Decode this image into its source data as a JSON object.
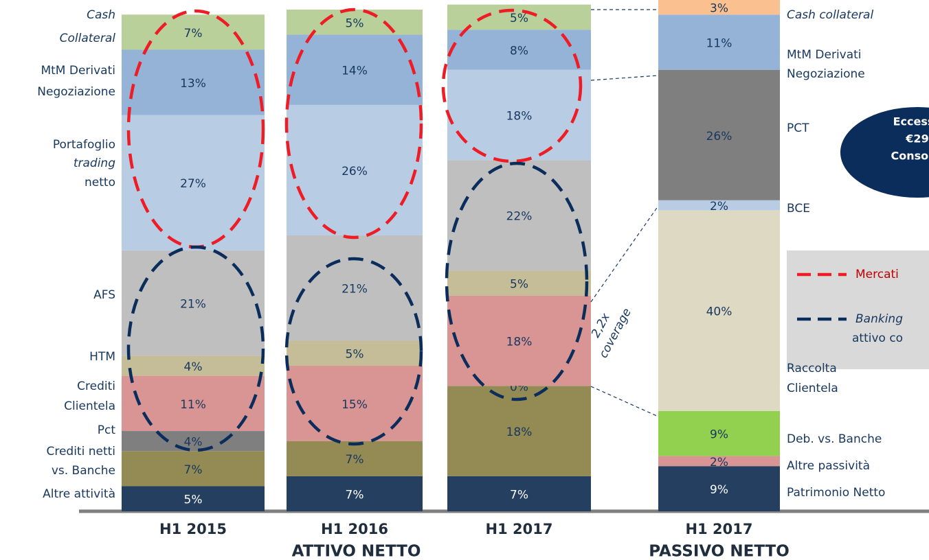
{
  "chart_data": [
    {
      "type": "bar",
      "stacked": true,
      "group_label": "ATTIVO NETTO",
      "categories": [
        "H1 2015",
        "H1 2016",
        "H1 2017"
      ],
      "ylim": [
        0,
        100
      ],
      "series": [
        {
          "name": [
            "Altre attività"
          ],
          "color": "#253f60",
          "values": [
            5,
            7,
            7
          ],
          "value_labels": [
            "5%",
            "7%",
            "7%"
          ]
        },
        {
          "name": [
            "Crediti netti",
            "vs. Banche"
          ],
          "color": "#948a54",
          "values": [
            7,
            7,
            18
          ],
          "value_labels": [
            "7%",
            "7%",
            "18%"
          ]
        },
        {
          "name": [
            "Pct"
          ],
          "color": "#7f7f7f",
          "values": [
            4,
            null,
            0
          ],
          "value_labels": [
            "4%",
            null,
            "0%"
          ]
        },
        {
          "name": [
            "Crediti",
            "Clientela"
          ],
          "color": "#d99594",
          "values": [
            11,
            15,
            18
          ],
          "value_labels": [
            "11%",
            "15%",
            "18%"
          ]
        },
        {
          "name": [
            "HTM"
          ],
          "color": "#c4bd97",
          "values": [
            4,
            5,
            5
          ],
          "value_labels": [
            "4%",
            "5%",
            "5%"
          ]
        },
        {
          "name": [
            "AFS"
          ],
          "color": "#bfbfbf",
          "values": [
            21,
            21,
            22
          ],
          "value_labels": [
            "21%",
            "21%",
            "22%"
          ]
        },
        {
          "name": [
            "Portafoglio",
            "trading",
            "netto"
          ],
          "color": "#b8cce4",
          "values": [
            27,
            26,
            18
          ],
          "value_labels": [
            "27%",
            "26%",
            "18%"
          ]
        },
        {
          "name": [
            "MtM Derivati",
            "Negoziazione"
          ],
          "color": "#95b3d7",
          "values": [
            13,
            14,
            8
          ],
          "value_labels": [
            "13%",
            "14%",
            "8%"
          ]
        },
        {
          "name": [
            "Cash",
            "Collateral"
          ],
          "color": "#b9d09a",
          "values": [
            7,
            5,
            5
          ],
          "value_labels": [
            "7%",
            "5%",
            "5%"
          ]
        }
      ]
    },
    {
      "type": "bar",
      "stacked": true,
      "group_label": "PASSIVO NETTO",
      "categories": [
        "H1 2017"
      ],
      "ylim": [
        0,
        100
      ],
      "series": [
        {
          "name": [
            "Patrimonio Netto"
          ],
          "color": "#253f60",
          "values": [
            9
          ],
          "value_labels": [
            "9%"
          ]
        },
        {
          "name": [
            "Altre passività"
          ],
          "color": "#d99594",
          "values": [
            2
          ],
          "value_labels": [
            "2%"
          ]
        },
        {
          "name": [
            "Deb. vs. Banche"
          ],
          "color": "#92d050",
          "values": [
            9
          ],
          "value_labels": [
            "9%"
          ]
        },
        {
          "name": [
            "Raccolta",
            "Clientela"
          ],
          "color": "#ddd9c3",
          "values": [
            40
          ],
          "value_labels": [
            "40%"
          ]
        },
        {
          "name": [
            "BCE"
          ],
          "color": "#b8cce4",
          "values": [
            2
          ],
          "value_labels": [
            "2%"
          ]
        },
        {
          "name": [
            "PCT"
          ],
          "color": "#7f7f7f",
          "values": [
            26
          ],
          "value_labels": [
            "26%"
          ]
        },
        {
          "name": [
            "MtM Derivati",
            "Negoziazione"
          ],
          "color": "#95b3d7",
          "values": [
            11
          ],
          "value_labels": [
            "11%"
          ]
        },
        {
          "name": [
            "Cash collateral"
          ],
          "color": "#fac090",
          "values": [
            3
          ],
          "value_labels": [
            "3%"
          ]
        }
      ]
    }
  ],
  "annotations": {
    "coverage": [
      "2,2x",
      "coverage"
    ],
    "callout": {
      "lines": [
        "Eccesso",
        "€29",
        "Consolid"
      ],
      "color": "#0b2d5b"
    },
    "legend": [
      {
        "label": [
          "Mercati"
        ],
        "color": "#ee1c25"
      },
      {
        "label": [
          "Banking",
          "attivo co"
        ],
        "color": "#0b2d5b"
      }
    ]
  }
}
